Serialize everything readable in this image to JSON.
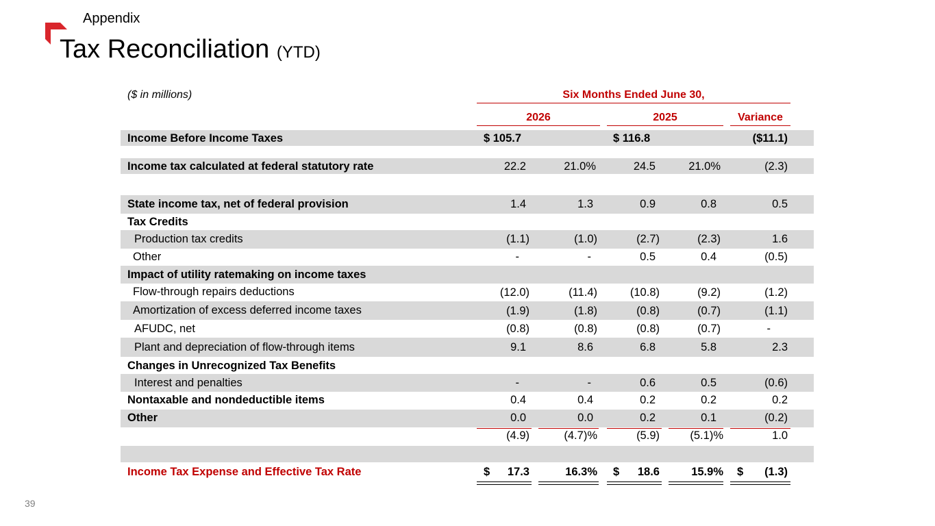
{
  "header": {
    "section": "Appendix",
    "title": "Tax Reconciliation",
    "title_suffix": "(YTD)",
    "page_number": "39",
    "accent_color": "#d9262c"
  },
  "table": {
    "units": "($ in millions)",
    "period_header": "Six Months Ended June 30,",
    "col_headers": [
      "2026",
      "2025",
      "Variance"
    ],
    "rows": [
      {
        "label": "Income Before Income Taxes",
        "values": [
          "$ 105.7",
          "",
          "$ 116.8",
          "",
          "($11.1)"
        ]
      },
      {
        "label": "Income tax calculated at federal statutory rate",
        "values": [
          "22.2",
          "21.0%",
          "24.5",
          "21.0%",
          "(2.3)"
        ]
      },
      {
        "label": "State income tax, net of federal provision",
        "values": [
          "1.4",
          "1.3",
          "0.9",
          "0.8",
          "0.5"
        ]
      },
      {
        "label": "Tax Credits",
        "values": [
          "",
          "",
          "",
          "",
          ""
        ]
      },
      {
        "label": "Production tax credits",
        "values": [
          "(1.1)",
          "(1.0)",
          "(2.7)",
          "(2.3)",
          "1.6"
        ]
      },
      {
        "label": "Other",
        "values": [
          "-",
          "-",
          "0.5",
          "0.4",
          "(0.5)"
        ]
      },
      {
        "label": "Impact of utility ratemaking on income taxes",
        "values": [
          "",
          "",
          "",
          "",
          ""
        ]
      },
      {
        "label": "Flow-through repairs deductions",
        "values": [
          "(12.0)",
          "(11.4)",
          "(10.8)",
          "(9.2)",
          "(1.2)"
        ]
      },
      {
        "label": "Amortization of excess deferred income taxes",
        "values": [
          "(1.9)",
          "(1.8)",
          "(0.8)",
          "(0.7)",
          "(1.1)"
        ]
      },
      {
        "label": "AFUDC, net",
        "values": [
          "(0.8)",
          "(0.8)",
          "(0.8)",
          "(0.7)",
          "-"
        ]
      },
      {
        "label": "Plant and depreciation of flow-through items",
        "values": [
          "9.1",
          "8.6",
          "6.8",
          "5.8",
          "2.3"
        ]
      },
      {
        "label": "Changes in Unrecognized Tax Benefits",
        "values": [
          "",
          "",
          "",
          "",
          ""
        ]
      },
      {
        "label": "Interest and penalties",
        "values": [
          "-",
          "-",
          "0.6",
          "0.5",
          "(0.6)"
        ]
      },
      {
        "label": "Nontaxable and nondeductible items",
        "values": [
          "0.4",
          "0.4",
          "0.2",
          "0.2",
          "0.2"
        ]
      },
      {
        "label": "Other",
        "values": [
          "0.0",
          "0.0",
          "0.2",
          "0.1",
          "(0.2)"
        ]
      },
      {
        "label": "",
        "values": [
          "(4.9)",
          "(4.7)%",
          "(5.9)",
          "(5.1)%",
          "1.0"
        ]
      },
      {
        "label": "",
        "values": [
          "",
          "",
          "",
          "",
          ""
        ]
      },
      {
        "label": "Income Tax Expense and Effective Tax Rate",
        "values": [
          "17.3",
          "16.3%",
          "18.6",
          "15.9%",
          "(1.3)"
        ],
        "currency": [
          "$",
          "",
          "$",
          "",
          "$"
        ]
      }
    ]
  }
}
